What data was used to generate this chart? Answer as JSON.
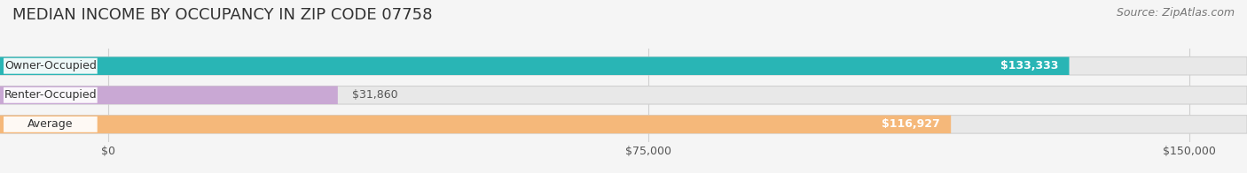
{
  "title": "MEDIAN INCOME BY OCCUPANCY IN ZIP CODE 07758",
  "source": "Source: ZipAtlas.com",
  "categories": [
    "Owner-Occupied",
    "Renter-Occupied",
    "Average"
  ],
  "values": [
    133333,
    31860,
    116927
  ],
  "bar_colors": [
    "#29b5b5",
    "#c9a8d4",
    "#f5b87a"
  ],
  "label_values": [
    "$133,333",
    "$31,860",
    "$116,927"
  ],
  "xlim_data": [
    0,
    150000
  ],
  "xticks": [
    0,
    75000,
    150000
  ],
  "xtick_labels": [
    "$0",
    "$75,000",
    "$150,000"
  ],
  "title_fontsize": 13,
  "source_fontsize": 9,
  "value_fontsize": 9,
  "cat_fontsize": 9,
  "background_color": "#f5f5f5",
  "bar_bg_color": "#e8e8e8",
  "bar_border_color": "#d0d0d0",
  "label_bg_color": "#ffffff",
  "grid_color": "#d0d0d0"
}
